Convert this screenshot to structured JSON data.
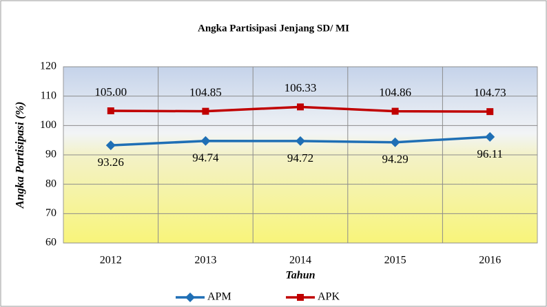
{
  "chart_data": {
    "type": "line",
    "title": "Angka Partisipasi Jenjang SD/ MI",
    "x_label": "Tahun",
    "y_label": "Angka Partisipasi (%)",
    "categories": [
      "2012",
      "2013",
      "2014",
      "2015",
      "2016"
    ],
    "series": [
      {
        "name": "APM",
        "color": "#1f6fb5",
        "values": [
          93.26,
          94.74,
          94.72,
          94.29,
          96.11
        ],
        "value_labels": [
          "93.26",
          "94.74",
          "94.72",
          "94.29",
          "96.11"
        ]
      },
      {
        "name": "APK",
        "color": "#c00000",
        "values": [
          105,
          104.85,
          106.33,
          104.86,
          104.73
        ],
        "value_labels": [
          "105.00",
          "104.85",
          "106.33",
          "104.86",
          "104.73"
        ]
      }
    ],
    "ylim": [
      60,
      120
    ],
    "yticks": [
      60,
      70,
      80,
      90,
      100,
      110,
      120
    ],
    "grid": true,
    "legend": "bottom"
  }
}
